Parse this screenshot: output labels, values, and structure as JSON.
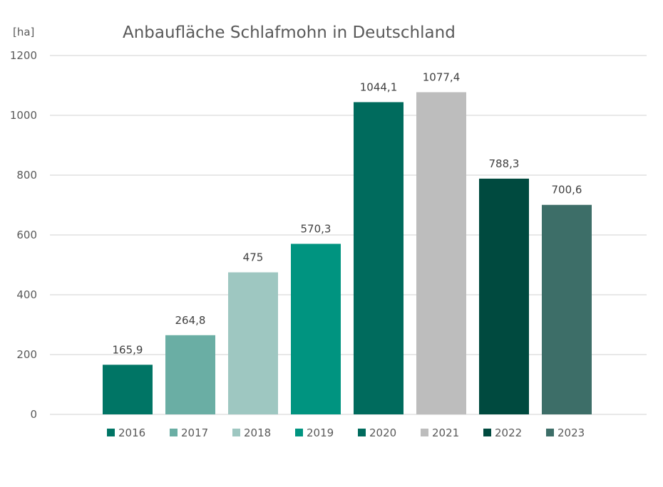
{
  "chart_data": {
    "type": "bar",
    "title": "Anbaufläche Schlafmohn in Deutschland",
    "ylabel": "[ha]",
    "xlabel": "",
    "ylim": [
      0,
      1200
    ],
    "yticks": [
      "0",
      "200",
      "400",
      "600",
      "800",
      "1000",
      "1200"
    ],
    "grid": true,
    "legend_position": "bottom",
    "categories": [
      "2016",
      "2017",
      "2018",
      "2019",
      "2020",
      "2021",
      "2022",
      "2023"
    ],
    "values": [
      165.9,
      264.8,
      475,
      570.3,
      1044.1,
      1077.4,
      788.3,
      700.6
    ],
    "value_labels": [
      "165,9",
      "264,8",
      "475",
      "570,3",
      "1044,1",
      "1077,4",
      "788,3",
      "700,6"
    ],
    "colors": [
      "#007565",
      "#6aaea4",
      "#9ec7c1",
      "#009480",
      "#006b5d",
      "#bdbdbd",
      "#004a3f",
      "#3d6e68"
    ]
  }
}
